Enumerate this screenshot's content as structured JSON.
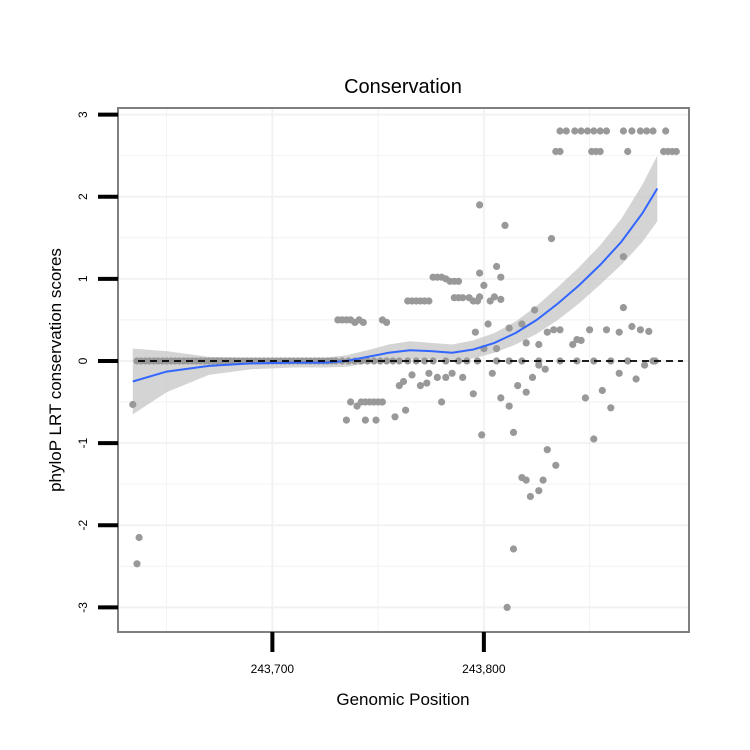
{
  "chart_data": {
    "type": "scatter",
    "title": "Conservation",
    "xlabel": "Genomic Position",
    "ylabel": "phyloP LRT conservation scores",
    "xlim": [
      243627,
      243897
    ],
    "ylim": [
      -3.3,
      3.08
    ],
    "xticks": [
      243700,
      243800
    ],
    "xtick_labels": [
      "243,700",
      "243,800"
    ],
    "yticks": [
      -3,
      -2,
      -1,
      0,
      1,
      2,
      3
    ],
    "ytick_labels": [
      "-3",
      "-2",
      "-1",
      "0",
      "1",
      "2",
      "3"
    ],
    "reference_line": {
      "y": 0,
      "style": "dashed",
      "color": "#000000"
    },
    "colors": {
      "points": "#999999",
      "smooth": "#3366ff",
      "ribbon": "#bdbdbd",
      "panel_border": "#7f7f7f",
      "grid": "#f2f2f2"
    },
    "points": [
      [
        243634,
        -0.53
      ],
      [
        243636,
        -2.47
      ],
      [
        243637,
        -2.15
      ],
      [
        243636,
        0
      ],
      [
        243638,
        0
      ],
      [
        243640,
        0
      ],
      [
        243642,
        0
      ],
      [
        243644,
        0
      ],
      [
        243646,
        0
      ],
      [
        243648,
        0
      ],
      [
        243650,
        0
      ],
      [
        243652,
        0
      ],
      [
        243654,
        0
      ],
      [
        243656,
        0
      ],
      [
        243658,
        0
      ],
      [
        243660,
        0
      ],
      [
        243662,
        0
      ],
      [
        243664,
        0
      ],
      [
        243666,
        0
      ],
      [
        243668,
        0
      ],
      [
        243670,
        0
      ],
      [
        243672,
        0
      ],
      [
        243674,
        0
      ],
      [
        243676,
        0
      ],
      [
        243678,
        0
      ],
      [
        243680,
        0
      ],
      [
        243682,
        0
      ],
      [
        243684,
        0
      ],
      [
        243686,
        0
      ],
      [
        243688,
        0
      ],
      [
        243690,
        0
      ],
      [
        243692,
        0
      ],
      [
        243694,
        0
      ],
      [
        243696,
        0
      ],
      [
        243698,
        0
      ],
      [
        243700,
        0
      ],
      [
        243702,
        0
      ],
      [
        243704,
        0
      ],
      [
        243706,
        0
      ],
      [
        243708,
        0
      ],
      [
        243710,
        0
      ],
      [
        243712,
        0
      ],
      [
        243714,
        0
      ],
      [
        243716,
        0
      ],
      [
        243718,
        0
      ],
      [
        243720,
        0
      ],
      [
        243722,
        0
      ],
      [
        243724,
        0
      ],
      [
        243726,
        0
      ],
      [
        243728,
        0
      ],
      [
        243730,
        0
      ],
      [
        243733,
        0
      ],
      [
        243736,
        0
      ],
      [
        243739,
        0
      ],
      [
        243742,
        0
      ],
      [
        243745,
        0
      ],
      [
        243748,
        0
      ],
      [
        243751,
        0
      ],
      [
        243754,
        0
      ],
      [
        243757,
        0
      ],
      [
        243760,
        0
      ],
      [
        243764,
        0
      ],
      [
        243768,
        0
      ],
      [
        243772,
        0
      ],
      [
        243776,
        0
      ],
      [
        243782,
        0
      ],
      [
        243788,
        0
      ],
      [
        243792,
        0
      ],
      [
        243797,
        0
      ],
      [
        243806,
        0
      ],
      [
        243812,
        0
      ],
      [
        243818,
        0
      ],
      [
        243826,
        0
      ],
      [
        243836,
        0
      ],
      [
        243844,
        0
      ],
      [
        243852,
        0
      ],
      [
        243860,
        0
      ],
      [
        243868,
        0
      ],
      [
        243881,
        0
      ],
      [
        243731,
        0.5
      ],
      [
        243733,
        0.5
      ],
      [
        243735,
        0.5
      ],
      [
        243737,
        0.5
      ],
      [
        243739,
        0.47
      ],
      [
        243741,
        0.5
      ],
      [
        243743,
        0.47
      ],
      [
        243752,
        0.5
      ],
      [
        243754,
        0.47
      ],
      [
        243737,
        -0.5
      ],
      [
        243740,
        -0.55
      ],
      [
        243742,
        -0.5
      ],
      [
        243744,
        -0.5
      ],
      [
        243746,
        -0.5
      ],
      [
        243748,
        -0.5
      ],
      [
        243750,
        -0.5
      ],
      [
        243752,
        -0.5
      ],
      [
        243735,
        -0.72
      ],
      [
        243744,
        -0.72
      ],
      [
        243749,
        -0.72
      ],
      [
        243758,
        -0.68
      ],
      [
        243763,
        -0.6
      ],
      [
        243770,
        -0.3
      ],
      [
        243773,
        -0.27
      ],
      [
        243780,
        -0.5
      ],
      [
        243782,
        -0.2
      ],
      [
        243774,
        -0.15
      ],
      [
        243778,
        -0.2
      ],
      [
        243785,
        -0.15
      ],
      [
        243790,
        -0.2
      ],
      [
        243795,
        -0.4
      ],
      [
        243804,
        -0.15
      ],
      [
        243808,
        -0.45
      ],
      [
        243762,
        -0.25
      ],
      [
        243766,
        -0.17
      ],
      [
        243760,
        -0.3
      ],
      [
        243764,
        0.73
      ],
      [
        243766,
        0.73
      ],
      [
        243768,
        0.73
      ],
      [
        243770,
        0.73
      ],
      [
        243772,
        0.73
      ],
      [
        243774,
        0.73
      ],
      [
        243776,
        1.02
      ],
      [
        243778,
        1.02
      ],
      [
        243780,
        1.02
      ],
      [
        243782,
        1.0
      ],
      [
        243784,
        0.97
      ],
      [
        243786,
        0.97
      ],
      [
        243788,
        0.97
      ],
      [
        243786,
        0.77
      ],
      [
        243788,
        0.77
      ],
      [
        243790,
        0.77
      ],
      [
        243793,
        0.77
      ],
      [
        243795,
        0.73
      ],
      [
        243797,
        0.73
      ],
      [
        243803,
        0.73
      ],
      [
        243805,
        0.78
      ],
      [
        243798,
        0.78
      ],
      [
        243798,
        1.9
      ],
      [
        243810,
        1.65
      ],
      [
        243798,
        1.07
      ],
      [
        243800,
        0.92
      ],
      [
        243806,
        1.15
      ],
      [
        243808,
        1.02
      ],
      [
        243808,
        0.75
      ],
      [
        243796,
        0.35
      ],
      [
        243800,
        0.15
      ],
      [
        243802,
        0.45
      ],
      [
        243806,
        0.15
      ],
      [
        243812,
        0.4
      ],
      [
        243818,
        0.45
      ],
      [
        243824,
        0.62
      ],
      [
        243820,
        0.22
      ],
      [
        243826,
        0.2
      ],
      [
        243830,
        0.35
      ],
      [
        243833,
        0.38
      ],
      [
        243836,
        0.38
      ],
      [
        243799,
        -0.9
      ],
      [
        243812,
        -0.55
      ],
      [
        243814,
        -0.87
      ],
      [
        243816,
        -0.3
      ],
      [
        243818,
        -1.42
      ],
      [
        243820,
        -1.45
      ],
      [
        243822,
        -1.65
      ],
      [
        243826,
        -1.58
      ],
      [
        243828,
        -1.45
      ],
      [
        243830,
        -1.08
      ],
      [
        243834,
        -1.27
      ],
      [
        243820,
        -0.38
      ],
      [
        243823,
        -0.2
      ],
      [
        243826,
        -0.05
      ],
      [
        243829,
        -0.1
      ],
      [
        243814,
        -2.29
      ],
      [
        243811,
        -3.0
      ],
      [
        243832,
        1.49
      ],
      [
        243842,
        0.2
      ],
      [
        243844,
        0.26
      ],
      [
        243846,
        0.25
      ],
      [
        243848,
        -0.45
      ],
      [
        243850,
        0.38
      ],
      [
        243852,
        -0.95
      ],
      [
        243856,
        -0.36
      ],
      [
        243858,
        0.38
      ],
      [
        243860,
        -0.57
      ],
      [
        243864,
        -0.15
      ],
      [
        243866,
        0.65
      ],
      [
        243864,
        0.35
      ],
      [
        243866,
        1.27
      ],
      [
        243870,
        0.42
      ],
      [
        243872,
        -0.22
      ],
      [
        243874,
        0.38
      ],
      [
        243876,
        -0.05
      ],
      [
        243878,
        0.36
      ],
      [
        243880,
        0.0
      ],
      [
        243836,
        2.8
      ],
      [
        243839,
        2.8
      ],
      [
        243843,
        2.8
      ],
      [
        243846,
        2.8
      ],
      [
        243849,
        2.8
      ],
      [
        243852,
        2.8
      ],
      [
        243855,
        2.8
      ],
      [
        243858,
        2.8
      ],
      [
        243866,
        2.8
      ],
      [
        243870,
        2.8
      ],
      [
        243874,
        2.8
      ],
      [
        243877,
        2.8
      ],
      [
        243880,
        2.8
      ],
      [
        243886,
        2.8
      ],
      [
        243834,
        2.55
      ],
      [
        243836,
        2.55
      ],
      [
        243851,
        2.55
      ],
      [
        243853,
        2.55
      ],
      [
        243855,
        2.55
      ],
      [
        243868,
        2.55
      ],
      [
        243885,
        2.55
      ],
      [
        243887,
        2.55
      ],
      [
        243889,
        2.55
      ],
      [
        243891,
        2.55
      ]
    ],
    "smooth": {
      "x": [
        243634,
        243650,
        243670,
        243690,
        243710,
        243725,
        243735,
        243745,
        243755,
        243765,
        243775,
        243785,
        243795,
        243805,
        243815,
        243825,
        243835,
        243845,
        243855,
        243865,
        243875,
        243882
      ],
      "y": [
        -0.25,
        -0.13,
        -0.06,
        -0.03,
        -0.02,
        -0.02,
        0.0,
        0.05,
        0.1,
        0.13,
        0.12,
        0.1,
        0.14,
        0.22,
        0.34,
        0.5,
        0.7,
        0.92,
        1.17,
        1.45,
        1.8,
        2.1
      ],
      "lower": [
        -0.65,
        -0.38,
        -0.17,
        -0.1,
        -0.08,
        -0.08,
        -0.07,
        -0.03,
        0.0,
        0.02,
        0.02,
        0.0,
        0.03,
        0.1,
        0.2,
        0.33,
        0.5,
        0.7,
        0.93,
        1.17,
        1.45,
        1.7
      ],
      "upper": [
        0.15,
        0.12,
        0.05,
        0.04,
        0.04,
        0.04,
        0.07,
        0.13,
        0.2,
        0.24,
        0.22,
        0.2,
        0.25,
        0.34,
        0.48,
        0.67,
        0.9,
        1.14,
        1.41,
        1.73,
        2.15,
        2.5
      ]
    }
  }
}
